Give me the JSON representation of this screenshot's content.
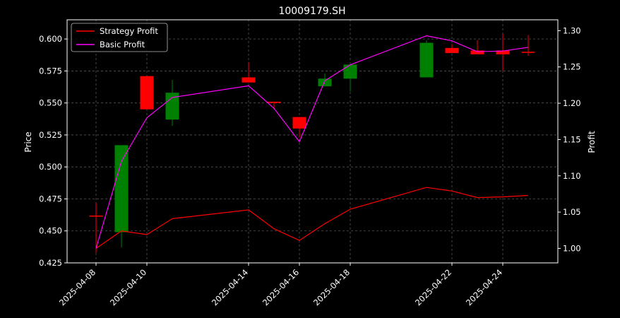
{
  "chart_data": {
    "type": "candlestick",
    "title": "10009179.SH",
    "xlabel": "",
    "ylabel_left": "Price",
    "ylabel_right": "Profit",
    "ylim_left": [
      0.425,
      0.615
    ],
    "ylim_right": [
      0.98,
      1.315
    ],
    "y_ticks_left": [
      "0.425",
      "0.450",
      "0.475",
      "0.500",
      "0.525",
      "0.550",
      "0.575",
      "0.600"
    ],
    "y_ticks_right": [
      "1.00",
      "1.05",
      "1.10",
      "1.15",
      "1.20",
      "1.25",
      "1.30"
    ],
    "x_tick_labels": [
      "2025-04-08",
      "2025-04-10",
      "2025-04-14",
      "2025-04-16",
      "2025-04-18",
      "2025-04-22",
      "2025-04-24"
    ],
    "grid": true,
    "legend_position": "top-left",
    "background": "#000000",
    "colors": {
      "up": "#008000",
      "down": "#ff0000",
      "strategy": "#ff0000",
      "basic": "#ff00ff",
      "axis": "#ffffff",
      "grid": "#555555"
    },
    "candles": [
      {
        "date": "2025-04-08",
        "open": 0.462,
        "close": 0.462,
        "high": 0.472,
        "low": 0.433
      },
      {
        "date": "2025-04-09",
        "open": 0.449,
        "close": 0.517,
        "high": 0.517,
        "low": 0.437
      },
      {
        "date": "2025-04-10",
        "open": 0.571,
        "close": 0.545,
        "high": 0.571,
        "low": 0.545
      },
      {
        "date": "2025-04-11",
        "open": 0.537,
        "close": 0.558,
        "high": 0.568,
        "low": 0.532
      },
      {
        "date": "2025-04-14",
        "open": 0.57,
        "close": 0.566,
        "high": 0.582,
        "low": 0.566
      },
      {
        "date": "2025-04-15",
        "open": 0.551,
        "close": 0.55,
        "high": 0.551,
        "low": 0.545
      },
      {
        "date": "2025-04-16",
        "open": 0.539,
        "close": 0.53,
        "high": 0.539,
        "low": 0.523
      },
      {
        "date": "2025-04-17",
        "open": 0.563,
        "close": 0.569,
        "high": 0.573,
        "low": 0.563
      },
      {
        "date": "2025-04-18",
        "open": 0.569,
        "close": 0.58,
        "high": 0.58,
        "low": 0.559
      },
      {
        "date": "2025-04-21",
        "open": 0.57,
        "close": 0.597,
        "high": 0.599,
        "low": 0.57
      },
      {
        "date": "2025-04-22",
        "open": 0.593,
        "close": 0.589,
        "high": 0.596,
        "low": 0.589
      },
      {
        "date": "2025-04-23",
        "open": 0.591,
        "close": 0.588,
        "high": 0.599,
        "low": 0.588
      },
      {
        "date": "2025-04-24",
        "open": 0.591,
        "close": 0.588,
        "high": 0.604,
        "low": 0.575
      },
      {
        "date": "2025-04-25",
        "open": 0.59,
        "close": 0.59,
        "high": 0.603,
        "low": 0.587
      }
    ],
    "series": [
      {
        "name": "Strategy Profit",
        "axis": "right",
        "values": [
          1.0,
          1.024,
          1.019,
          1.041,
          1.053,
          1.027,
          1.011,
          1.034,
          1.054,
          1.084,
          1.079,
          1.07,
          1.071,
          1.073
        ]
      },
      {
        "name": "Basic Profit",
        "axis": "right",
        "values": [
          1.0,
          1.12,
          1.18,
          1.208,
          1.224,
          1.193,
          1.147,
          1.231,
          1.253,
          1.293,
          1.286,
          1.271,
          1.272,
          1.277
        ]
      }
    ]
  }
}
